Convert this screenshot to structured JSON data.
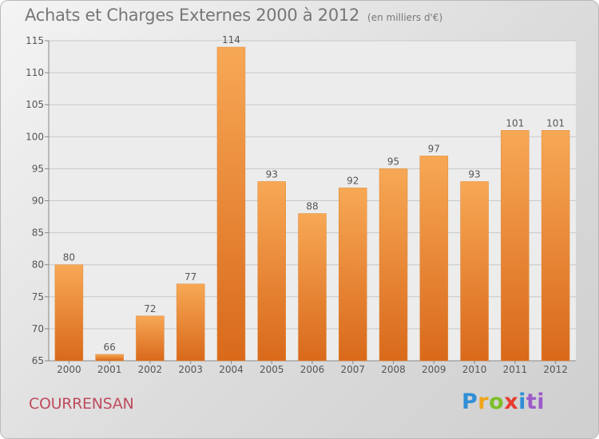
{
  "chart_data": {
    "type": "bar",
    "title": "Achats et Charges Externes 2000 à 2012",
    "unit_label": "(en milliers d'€)",
    "xlabel": "",
    "ylabel": "",
    "categories": [
      "2000",
      "2001",
      "2002",
      "2003",
      "2004",
      "2005",
      "2006",
      "2007",
      "2008",
      "2009",
      "2010",
      "2011",
      "2012"
    ],
    "values": [
      80,
      66,
      72,
      77,
      114,
      93,
      88,
      92,
      95,
      97,
      93,
      101,
      101
    ],
    "ylim": [
      65,
      115
    ],
    "yticks": [
      65,
      70,
      75,
      80,
      85,
      90,
      95,
      100,
      105,
      110,
      115
    ],
    "grid": true,
    "colors": {
      "bar_top": "#f7a855",
      "bar_bottom": "#d9691b",
      "grid": "#c8c8c8",
      "axis": "#888888"
    }
  },
  "footer": {
    "commune": "COURRENSAN",
    "logo_letters": [
      "P",
      "r",
      "o",
      "x",
      "i",
      "ti"
    ]
  }
}
